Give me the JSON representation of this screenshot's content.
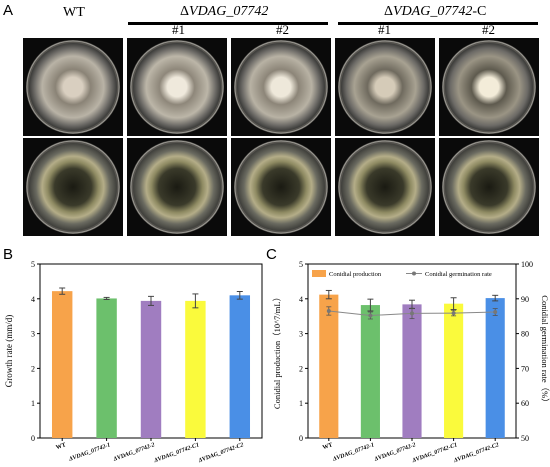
{
  "figure": {
    "panels": {
      "A": "A",
      "B": "B",
      "C": "C"
    },
    "panel_a": {
      "wt_label": "WT",
      "group1_prefix": "Δ",
      "group1_label": "VDAG_07742",
      "group2_prefix": "Δ",
      "group2_label": "VDAG_07742",
      "group2_suffix": "-C",
      "sub_labels": [
        "#1",
        "#2",
        "#1",
        "#2"
      ]
    }
  },
  "chart_data": [
    {
      "type": "bar",
      "categories": [
        "WT",
        "ΔVDAG_07742-1",
        "ΔVDAG_07742-2",
        "ΔVDAG_07742-C1",
        "ΔVDAG_07742-C2"
      ],
      "values": [
        4.22,
        4.01,
        3.94,
        3.94,
        4.1
      ],
      "errors": [
        0.09,
        0.03,
        0.13,
        0.2,
        0.11
      ],
      "colors": [
        "#f7a34a",
        "#6cc06c",
        "#a07dc0",
        "#fafa3c",
        "#4a8fe6"
      ],
      "ylabel": "Growth rate (mm/d)",
      "ylim": [
        0,
        5
      ],
      "yticks": [
        0,
        1,
        2,
        3,
        4,
        5
      ]
    },
    {
      "type": "bar",
      "categories": [
        "WT",
        "ΔVDAG_07742-1",
        "ΔVDAG_07742-2",
        "ΔVDAG_07742-C1",
        "ΔVDAG_07742-C2"
      ],
      "series": [
        {
          "name": "Conidial production",
          "values": [
            4.12,
            3.82,
            3.84,
            3.86,
            4.02
          ],
          "errors": [
            0.12,
            0.17,
            0.12,
            0.17,
            0.08
          ]
        },
        {
          "name": "Conidial germination rate",
          "values": [
            86.5,
            85.2,
            85.8,
            85.9,
            86.2
          ],
          "errors": [
            1.2,
            1.0,
            1.5,
            0.8,
            1.0
          ]
        }
      ],
      "colors": [
        "#f7a34a",
        "#6cc06c",
        "#a07dc0",
        "#fafa3c",
        "#4a8fe6"
      ],
      "legend_color": "#f7a34a",
      "line_color": "#888888",
      "ylabel_left": "Conidial production（10^7/mL）",
      "ylabel_right": "Conidial germination rate（%）",
      "ylim_left": [
        0,
        5
      ],
      "yticks_left": [
        0,
        1,
        2,
        3,
        4,
        5
      ],
      "ylim_right": [
        50,
        100
      ],
      "yticks_right": [
        50,
        60,
        70,
        80,
        90,
        100
      ],
      "legend_position": "top"
    }
  ]
}
